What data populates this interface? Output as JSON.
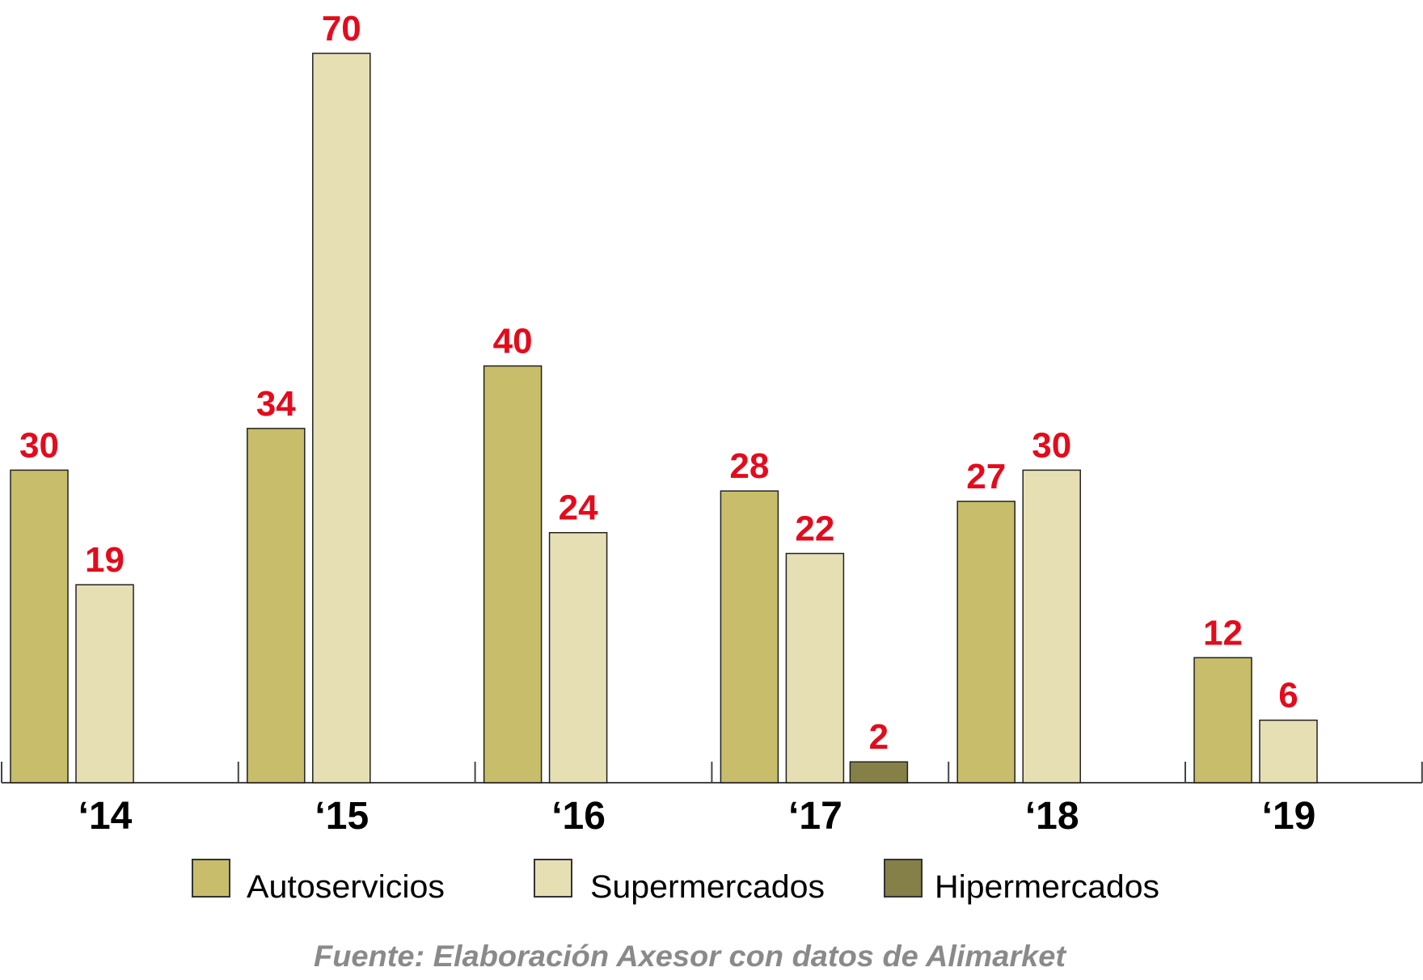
{
  "chart_data": {
    "type": "bar",
    "categories": [
      "‘14",
      "‘15",
      "‘16",
      "‘17",
      "‘18",
      "‘19"
    ],
    "series": [
      {
        "name": "Autoservicios",
        "color": "#c8bd6a",
        "values": [
          30,
          34,
          40,
          28,
          27,
          12
        ]
      },
      {
        "name": "Supermercados",
        "color": "#e6dfb4",
        "values": [
          19,
          70,
          24,
          22,
          30,
          6
        ]
      },
      {
        "name": "Hipermercados",
        "color": "#857f48",
        "values": [
          null,
          null,
          null,
          2,
          null,
          null
        ]
      }
    ],
    "value_label_color": "#e30b1c",
    "title": "",
    "xlabel": "",
    "ylabel": "",
    "ylim": [
      0,
      70
    ],
    "grid": false,
    "legend_position": "bottom",
    "source": "Fuente: Elaboración Axesor con datos de Alimarket"
  }
}
